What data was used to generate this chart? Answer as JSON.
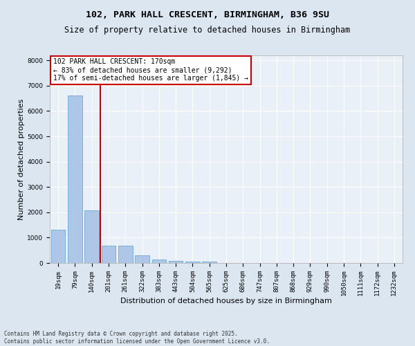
{
  "title_line1": "102, PARK HALL CRESCENT, BIRMINGHAM, B36 9SU",
  "title_line2": "Size of property relative to detached houses in Birmingham",
  "xlabel": "Distribution of detached houses by size in Birmingham",
  "ylabel": "Number of detached properties",
  "categories": [
    "19sqm",
    "79sqm",
    "140sqm",
    "201sqm",
    "261sqm",
    "322sqm",
    "383sqm",
    "443sqm",
    "504sqm",
    "565sqm",
    "625sqm",
    "686sqm",
    "747sqm",
    "807sqm",
    "868sqm",
    "929sqm",
    "990sqm",
    "1050sqm",
    "1111sqm",
    "1172sqm",
    "1232sqm"
  ],
  "values": [
    1320,
    6620,
    2090,
    670,
    670,
    295,
    135,
    80,
    55,
    55,
    0,
    0,
    0,
    0,
    0,
    0,
    0,
    0,
    0,
    0,
    0
  ],
  "bar_color": "#aec6e8",
  "bar_edge_color": "#5a9fd4",
  "vline_color": "#cc0000",
  "vline_pos": 2.5,
  "annotation_box_text": "102 PARK HALL CRESCENT: 170sqm\n← 83% of detached houses are smaller (9,292)\n17% of semi-detached houses are larger (1,845) →",
  "ylim": [
    0,
    8200
  ],
  "yticks": [
    0,
    1000,
    2000,
    3000,
    4000,
    5000,
    6000,
    7000,
    8000
  ],
  "footnote": "Contains HM Land Registry data © Crown copyright and database right 2025.\nContains public sector information licensed under the Open Government Licence v3.0.",
  "bg_color": "#dce6f1",
  "plot_bg_color": "#eaf0f8",
  "grid_color": "#ffffff",
  "title_fontsize": 9.5,
  "subtitle_fontsize": 8.5,
  "tick_fontsize": 6.5,
  "label_fontsize": 8,
  "annot_fontsize": 7,
  "footnote_fontsize": 5.5
}
